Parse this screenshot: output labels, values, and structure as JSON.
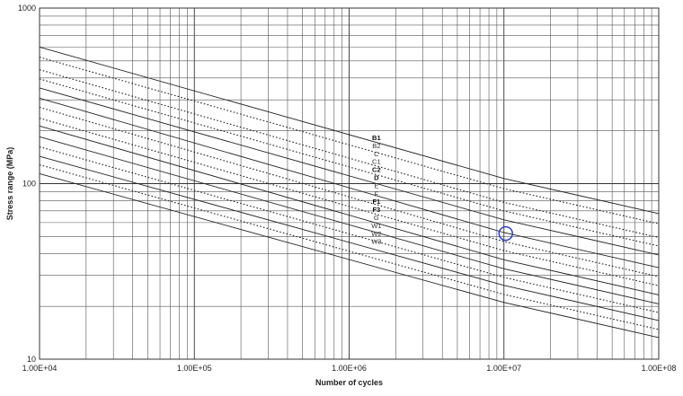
{
  "chart_data": {
    "type": "line",
    "title": "",
    "xlabel": "Number of cycles",
    "ylabel": "Stress range (MPa)",
    "xscale": "log",
    "yscale": "log",
    "xlim": [
      10000,
      100000000
    ],
    "ylim": [
      10,
      1000
    ],
    "grid": true,
    "x_tick_labels": [
      "1.00E+04",
      "1.00E+05",
      "1.00E+06",
      "1.00E+07",
      "1.00E+08"
    ],
    "y_tick_labels": [
      "10",
      "100",
      "1000"
    ],
    "knee_cycles": 10000000,
    "series": [
      {
        "name": "B1",
        "x": [
          10000,
          10000000,
          100000000
        ],
        "y": [
          600,
          106.97,
          67.49
        ],
        "style": "solid",
        "label_bold": true
      },
      {
        "name": "B2",
        "x": [
          10000,
          10000000,
          100000000
        ],
        "y": [
          525,
          93.59,
          59.05
        ],
        "style": "dotted",
        "label_bold": false
      },
      {
        "name": "C",
        "x": [
          10000,
          10000000,
          100000000
        ],
        "y": [
          446,
          78.19,
          49.33
        ],
        "style": "dotted",
        "label_bold": false
      },
      {
        "name": "C1",
        "x": [
          10000,
          10000000,
          100000000
        ],
        "y": [
          395,
          69.93,
          44.12
        ],
        "style": "dotted",
        "label_bold": false
      },
      {
        "name": "C2",
        "x": [
          10000,
          10000000,
          100000000
        ],
        "y": [
          351,
          62.23,
          39.26
        ],
        "style": "solid",
        "label_bold": true
      },
      {
        "name": "D",
        "x": [
          10000,
          10000000,
          100000000
        ],
        "y": [
          307,
          52.63,
          33.21
        ],
        "style": "solid",
        "label_bold": true
      },
      {
        "name": "E",
        "x": [
          10000,
          10000000,
          100000000
        ],
        "y": [
          272,
          46.78,
          29.51
        ],
        "style": "dotted",
        "label_bold": false
      },
      {
        "name": "F",
        "x": [
          10000,
          10000000,
          100000000
        ],
        "y": [
          236,
          41.52,
          26.2
        ],
        "style": "dotted",
        "label_bold": false
      },
      {
        "name": "F1",
        "x": [
          10000,
          10000000,
          100000000
        ],
        "y": [
          213,
          36.84,
          23.24
        ],
        "style": "solid",
        "label_bold": true
      },
      {
        "name": "F3",
        "x": [
          10000,
          10000000,
          100000000
        ],
        "y": [
          185,
          32.75,
          20.66
        ],
        "style": "solid",
        "label_bold": true
      },
      {
        "name": "G",
        "x": [
          10000,
          10000000,
          100000000
        ],
        "y": [
          162,
          29.24,
          18.45
        ],
        "style": "dotted",
        "label_bold": false
      },
      {
        "name": "W1",
        "x": [
          10000,
          10000000,
          100000000
        ],
        "y": [
          143,
          26.32,
          16.61
        ],
        "style": "solid",
        "label_bold": false
      },
      {
        "name": "W2",
        "x": [
          10000,
          10000000,
          100000000
        ],
        "y": [
          128,
          23.39,
          14.76
        ],
        "style": "dotted",
        "label_bold": false
      },
      {
        "name": "W3",
        "x": [
          10000,
          10000000,
          100000000
        ],
        "y": [
          114,
          21.05,
          13.28
        ],
        "style": "solid",
        "label_bold": false
      }
    ],
    "curve_labels_at_cycles": 1500000,
    "annotation": {
      "type": "circle",
      "x": 10000000,
      "y": 52,
      "color": "#2233cc"
    }
  }
}
